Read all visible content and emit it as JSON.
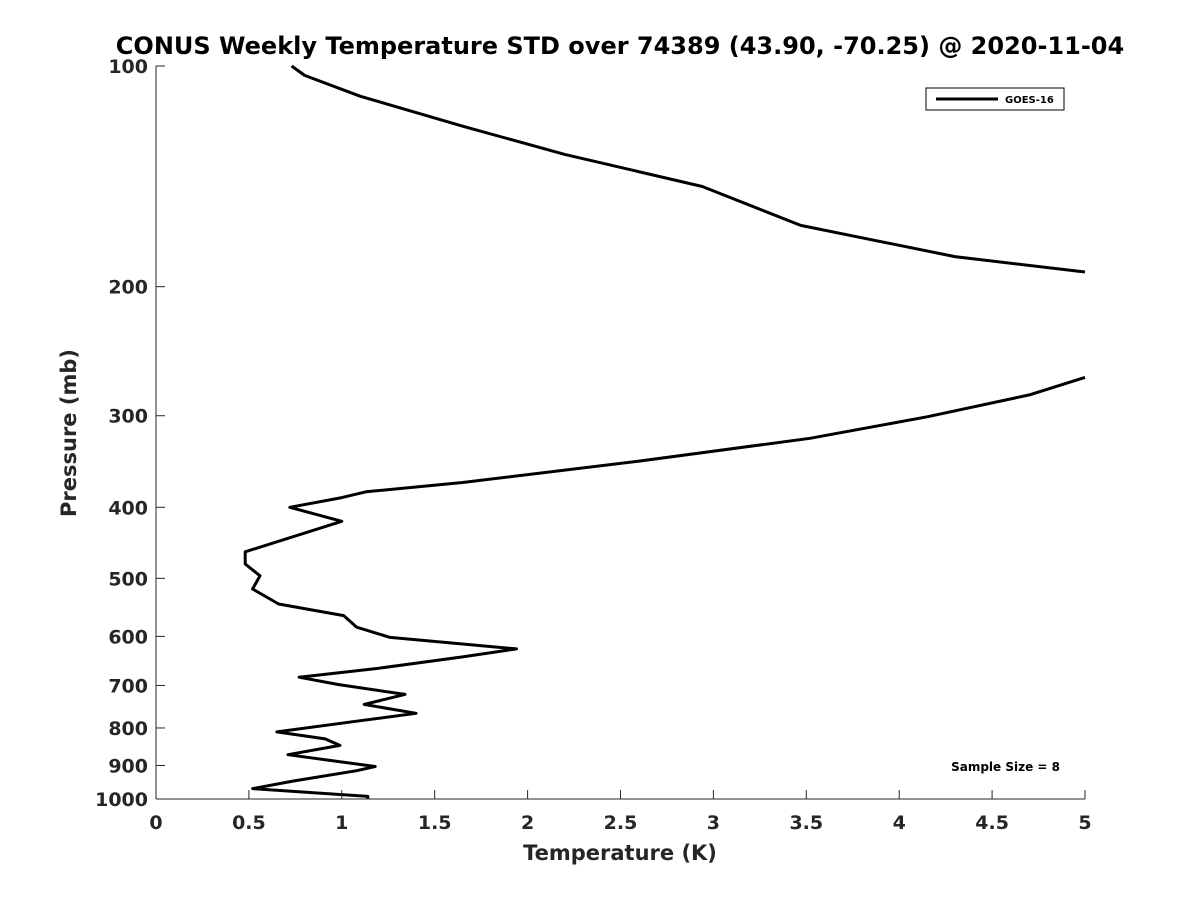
{
  "chart_data": {
    "type": "line",
    "title": "CONUS Weekly Temperature STD over 74389 (43.90, -70.25) @ 2020-11-04",
    "xlabel": "Temperature (K)",
    "ylabel": "Pressure (mb)",
    "xlim": [
      0,
      5
    ],
    "ylim": [
      100,
      1000
    ],
    "y_scale": "log",
    "y_reversed": true,
    "x_ticks": [
      "0",
      "0.5",
      "1",
      "1.5",
      "2",
      "2.5",
      "3",
      "3.5",
      "4",
      "4.5",
      "5"
    ],
    "y_ticks": [
      "100",
      "200",
      "300",
      "400",
      "500",
      "600",
      "700",
      "800",
      "900",
      "1000"
    ],
    "grid": false,
    "legend_position": "top-right",
    "annotation": "Sample Size = 8",
    "line_color": "#000000",
    "series": [
      {
        "name": "GOES-16",
        "points": [
          [
            0.73,
            100
          ],
          [
            0.8,
            103
          ],
          [
            1.1,
            110
          ],
          [
            1.66,
            121
          ],
          [
            2.2,
            132
          ],
          [
            2.94,
            146
          ],
          [
            3.47,
            165
          ],
          [
            4.3,
            182
          ],
          [
            5.0,
            191
          ],
          [
            null,
            null
          ],
          [
            5.0,
            266
          ],
          [
            4.7,
            281
          ],
          [
            4.15,
            301
          ],
          [
            3.52,
            322
          ],
          [
            2.6,
            346
          ],
          [
            1.65,
            370
          ],
          [
            1.13,
            381
          ],
          [
            1.0,
            388
          ],
          [
            0.72,
            400
          ],
          [
            1.0,
            418
          ],
          [
            0.48,
            460
          ],
          [
            0.48,
            478
          ],
          [
            0.56,
            496
          ],
          [
            0.52,
            517
          ],
          [
            0.66,
            542
          ],
          [
            1.01,
            562
          ],
          [
            1.08,
            583
          ],
          [
            1.26,
            602
          ],
          [
            1.94,
            624
          ],
          [
            1.65,
            640
          ],
          [
            1.2,
            663
          ],
          [
            0.77,
            682
          ],
          [
            0.98,
            698
          ],
          [
            1.34,
            720
          ],
          [
            1.12,
            743
          ],
          [
            1.4,
            764
          ],
          [
            1.1,
            782
          ],
          [
            0.65,
            810
          ],
          [
            0.91,
            828
          ],
          [
            0.99,
            845
          ],
          [
            0.71,
            870
          ],
          [
            1.18,
            903
          ],
          [
            1.08,
            915
          ],
          [
            0.74,
            945
          ],
          [
            0.52,
            968
          ],
          [
            1.14,
            992
          ],
          [
            1.14,
            1000
          ]
        ]
      }
    ]
  }
}
